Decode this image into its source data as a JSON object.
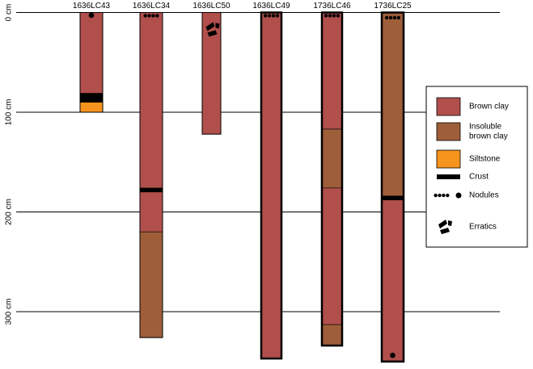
{
  "units": "cm",
  "depth_ticks": [
    {
      "depth": 0,
      "label": "0 cm"
    },
    {
      "depth": 100,
      "label": "100 cm"
    },
    {
      "depth": 200,
      "label": "200 cm"
    },
    {
      "depth": 300,
      "label": "300 cm"
    }
  ],
  "colors": {
    "brown_clay": "#b14f4c",
    "insoluble_brown_clay": "#9e5e3a",
    "siltstone": "#f7941d",
    "crust": "#000000"
  },
  "columns": [
    {
      "id": "1636LC43",
      "label": "1636LC43",
      "bottom": 100,
      "border": "thin",
      "units": [
        {
          "type": "brown_clay",
          "top": 0,
          "bottom": 81
        },
        {
          "type": "crust",
          "top": 81,
          "bottom": 90
        },
        {
          "type": "siltstone",
          "top": 90,
          "bottom": 100
        }
      ],
      "features": [
        {
          "type": "nodule-large",
          "depth": 2
        }
      ]
    },
    {
      "id": "1636LC34",
      "label": "1636LC34",
      "bottom": 326,
      "border": "thin",
      "units": [
        {
          "type": "brown_clay",
          "top": 0,
          "bottom": 176
        },
        {
          "type": "crust",
          "top": 176,
          "bottom": 180
        },
        {
          "type": "brown_clay",
          "top": 180,
          "bottom": 220
        },
        {
          "type": "insoluble_brown_clay",
          "top": 220,
          "bottom": 326
        }
      ],
      "features": [
        {
          "type": "nodules-small",
          "depth": 2
        }
      ]
    },
    {
      "id": "1636LC50",
      "label": "1636LC50",
      "bottom": 122,
      "border": "thin",
      "units": [
        {
          "type": "brown_clay",
          "top": 0,
          "bottom": 122
        }
      ],
      "features": [
        {
          "type": "erratics",
          "depth": 12
        }
      ]
    },
    {
      "id": "1636LC49",
      "label": "1636LC49",
      "bottom": 347,
      "border": "thick",
      "units": [
        {
          "type": "brown_clay",
          "top": 0,
          "bottom": 347
        }
      ],
      "features": [
        {
          "type": "nodules-small",
          "depth": 2
        }
      ]
    },
    {
      "id": "1736LC46",
      "label": "1736LC46",
      "bottom": 334,
      "border": "thick",
      "units": [
        {
          "type": "brown_clay",
          "top": 0,
          "bottom": 117
        },
        {
          "type": "insoluble_brown_clay",
          "top": 117,
          "bottom": 176
        },
        {
          "type": "brown_clay",
          "top": 176,
          "bottom": 313
        },
        {
          "type": "insoluble_brown_clay",
          "top": 313,
          "bottom": 334
        }
      ],
      "features": [
        {
          "type": "nodules-small",
          "depth": 2
        }
      ]
    },
    {
      "id": "1736LC25",
      "label": "1736LC25",
      "bottom": 350,
      "border": "thick",
      "units": [
        {
          "type": "insoluble_brown_clay",
          "top": 0,
          "bottom": 184
        },
        {
          "type": "crust",
          "top": 184,
          "bottom": 188
        },
        {
          "type": "brown_clay",
          "top": 188,
          "bottom": 350
        }
      ],
      "features": [
        {
          "type": "nodules-small",
          "depth": 4
        },
        {
          "type": "nodule-large",
          "depth": 343
        }
      ]
    }
  ],
  "legend": [
    {
      "type": "brown_clay",
      "label": "Brown clay",
      "swatch": "box"
    },
    {
      "type": "insoluble_brown_clay",
      "label": "Insoluble\nbrown clay",
      "swatch": "box"
    },
    {
      "type": "siltstone",
      "label": "Siltstone",
      "swatch": "box"
    },
    {
      "type": "crust",
      "label": "Crust",
      "swatch": "bar"
    },
    {
      "type": "nodules",
      "label": "Nodules",
      "swatch": "nodules"
    },
    {
      "type": "erratics",
      "label": "Erratics",
      "swatch": "erratics"
    }
  ]
}
